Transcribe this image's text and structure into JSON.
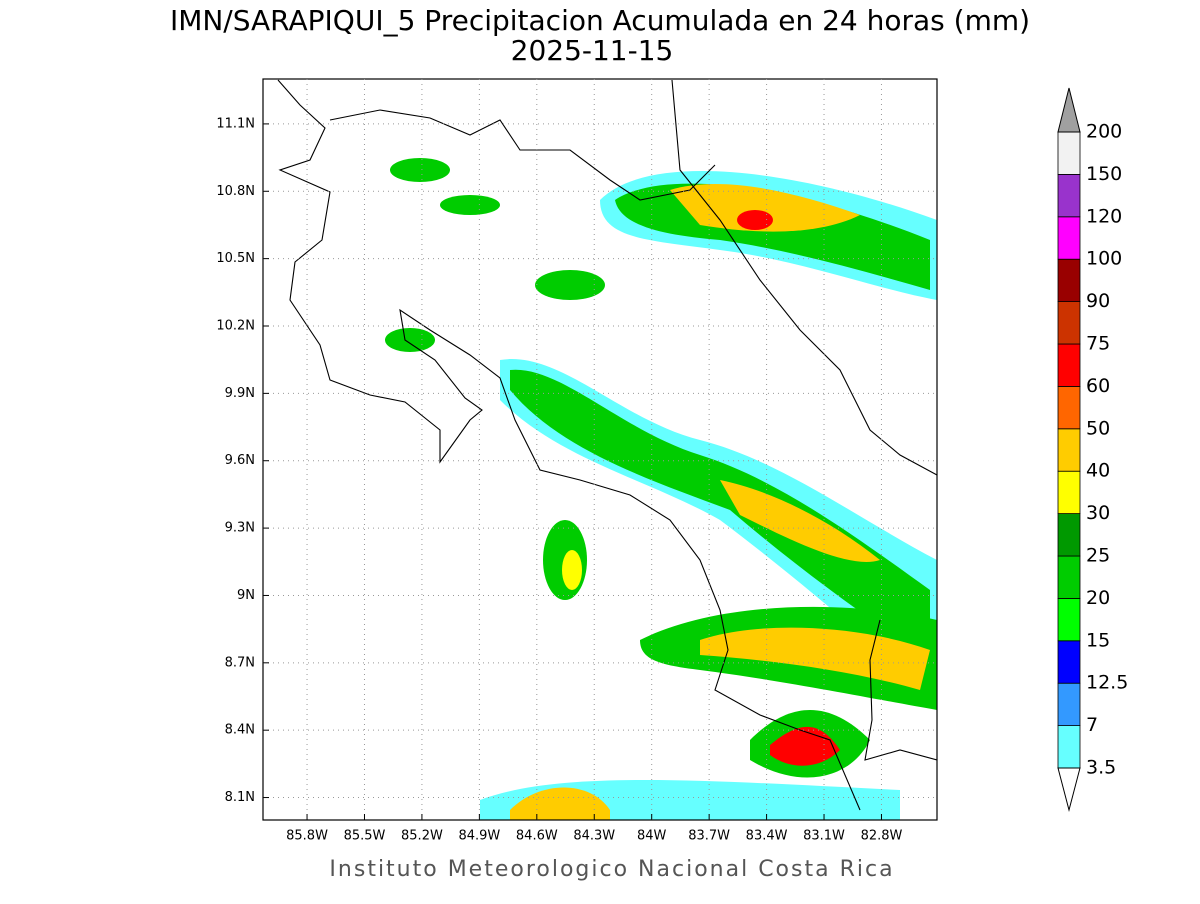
{
  "title": "IMN/SARAPIQUI_5 Precipitacion Acumulada en 24 horas (mm)",
  "subtitle": "2025-11-15",
  "footer": "Instituto Meteorologico Nacional Costa Rica",
  "map": {
    "xlim": [
      -86.03,
      -82.51
    ],
    "ylim": [
      8.0,
      11.3
    ],
    "grid": true,
    "xticks": [
      {
        "value": -85.8,
        "label": "85.8W"
      },
      {
        "value": -85.5,
        "label": "85.5W"
      },
      {
        "value": -85.2,
        "label": "85.2W"
      },
      {
        "value": -84.9,
        "label": "84.9W"
      },
      {
        "value": -84.6,
        "label": "84.6W"
      },
      {
        "value": -84.3,
        "label": "84.3W"
      },
      {
        "value": -84.0,
        "label": "84W"
      },
      {
        "value": -83.7,
        "label": "83.7W"
      },
      {
        "value": -83.4,
        "label": "83.4W"
      },
      {
        "value": -83.1,
        "label": "83.1W"
      },
      {
        "value": -82.8,
        "label": "82.8W"
      }
    ],
    "yticks": [
      {
        "value": 8.1,
        "label": "8.1N"
      },
      {
        "value": 8.4,
        "label": "8.4N"
      },
      {
        "value": 8.7,
        "label": "8.7N"
      },
      {
        "value": 9.0,
        "label": "9N"
      },
      {
        "value": 9.3,
        "label": "9.3N"
      },
      {
        "value": 9.6,
        "label": "9.6N"
      },
      {
        "value": 9.9,
        "label": "9.9N"
      },
      {
        "value": 10.2,
        "label": "10.2N"
      },
      {
        "value": 10.5,
        "label": "10.5N"
      },
      {
        "value": 10.8,
        "label": "10.8N"
      },
      {
        "value": 11.1,
        "label": "11.1N"
      }
    ]
  },
  "colorbar": {
    "levels": [
      3.5,
      7,
      12.5,
      15,
      20,
      25,
      30,
      40,
      50,
      60,
      75,
      90,
      100,
      120,
      150,
      200
    ],
    "colors": [
      "#66ffff",
      "#3399ff",
      "#0000ff",
      "#00ff00",
      "#00cc00",
      "#009900",
      "#ffff00",
      "#ffcc00",
      "#ff6600",
      "#ff0000",
      "#cc3300",
      "#990000",
      "#ff00ff",
      "#9933cc",
      "#f2f2f2"
    ],
    "above_color": "#a0a0a0",
    "below_color": "#ffffff"
  }
}
